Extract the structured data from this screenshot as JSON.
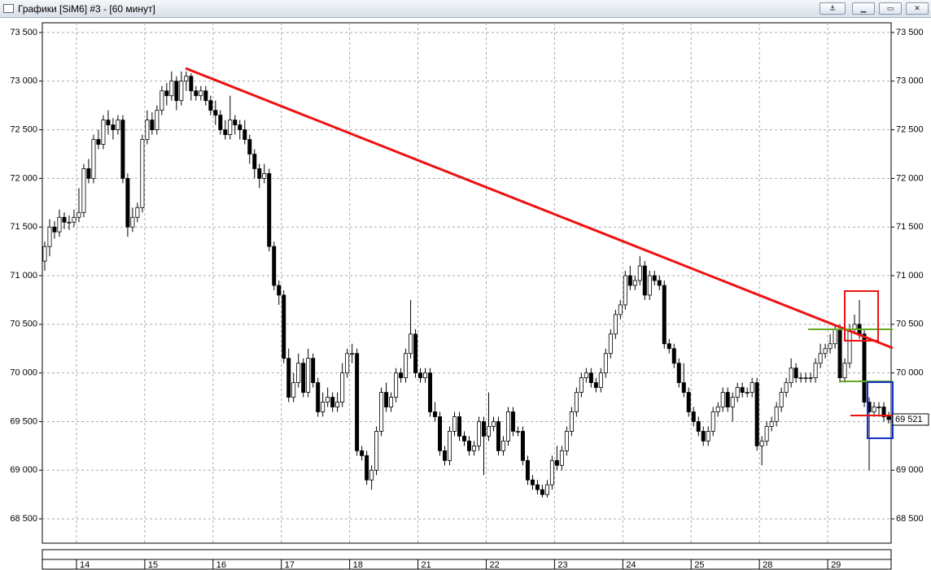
{
  "window_title": "Графики [SiM6] #3 - [60 минут]",
  "chart_data": {
    "type": "candlestick",
    "categories": [
      null,
      null,
      null,
      null,
      null,
      null,
      null,
      "14",
      null,
      null,
      null,
      null,
      null,
      null,
      null,
      null,
      null,
      null,
      null,
      null,
      null,
      "15",
      null,
      null,
      null,
      null,
      null,
      null,
      null,
      null,
      null,
      null,
      null,
      null,
      null,
      "16",
      null,
      null,
      null,
      null,
      null,
      null,
      null,
      null,
      null,
      null,
      null,
      null,
      null,
      "17",
      null,
      null,
      null,
      null,
      null,
      null,
      null,
      null,
      null,
      null,
      null,
      null,
      null,
      "18",
      null,
      null,
      null,
      null,
      null,
      null,
      null,
      null,
      null,
      null,
      null,
      null,
      null,
      "21",
      null,
      null,
      null,
      null,
      null,
      null,
      null,
      null,
      null,
      null,
      null,
      null,
      null,
      "22",
      null,
      null,
      null,
      null,
      null,
      null,
      null,
      null,
      null,
      null,
      null,
      null,
      null,
      "23",
      null,
      null,
      null,
      null,
      null,
      null,
      null,
      null,
      null,
      null,
      null,
      null,
      null,
      "24",
      null,
      null,
      null,
      null,
      null,
      null,
      null,
      null,
      null,
      null,
      null,
      null,
      null,
      "25",
      null,
      null,
      null,
      null,
      null,
      null,
      null,
      null,
      null,
      null,
      null,
      null,
      null,
      "28",
      null,
      null,
      null,
      null,
      null,
      null,
      null,
      null,
      null,
      null,
      null,
      null,
      null,
      "29",
      null,
      null,
      null,
      null,
      null,
      null,
      null,
      null,
      null,
      null,
      null,
      null
    ],
    "ohlc": [
      [
        71150,
        71350,
        71050,
        71300
      ],
      [
        71300,
        71580,
        71200,
        71500
      ],
      [
        71500,
        71560,
        71380,
        71450
      ],
      [
        71450,
        71680,
        71400,
        71600
      ],
      [
        71600,
        71650,
        71480,
        71550
      ],
      [
        71550,
        71620,
        71470,
        71550
      ],
      [
        71550,
        71680,
        71500,
        71600
      ],
      [
        71600,
        71900,
        71550,
        71650
      ],
      [
        71650,
        72150,
        71600,
        72100
      ],
      [
        72100,
        72200,
        71950,
        72000
      ],
      [
        72000,
        72450,
        71950,
        72400
      ],
      [
        72400,
        72500,
        72300,
        72350
      ],
      [
        72350,
        72650,
        72300,
        72600
      ],
      [
        72600,
        72700,
        72450,
        72550
      ],
      [
        72550,
        72620,
        72400,
        72500
      ],
      [
        72500,
        72650,
        72450,
        72600
      ],
      [
        72600,
        72650,
        71950,
        72000
      ],
      [
        72000,
        72050,
        71400,
        71500
      ],
      [
        71500,
        71700,
        71450,
        71600
      ],
      [
        71600,
        71750,
        71550,
        71700
      ],
      [
        71700,
        72450,
        71650,
        72400
      ],
      [
        72400,
        72700,
        72350,
        72600
      ],
      [
        72600,
        72680,
        72450,
        72500
      ],
      [
        72500,
        72750,
        72450,
        72700
      ],
      [
        72700,
        72950,
        72650,
        72900
      ],
      [
        72900,
        72980,
        72750,
        72850
      ],
      [
        72850,
        73100,
        72800,
        73000
      ],
      [
        73000,
        73050,
        72700,
        72800
      ],
      [
        72800,
        73100,
        72750,
        73000
      ],
      [
        73000,
        73100,
        72900,
        73050
      ],
      [
        73050,
        73080,
        72800,
        72900
      ],
      [
        72900,
        72950,
        72800,
        72850
      ],
      [
        72850,
        72950,
        72800,
        72900
      ],
      [
        72900,
        72950,
        72750,
        72800
      ],
      [
        72800,
        72850,
        72650,
        72700
      ],
      [
        72700,
        72800,
        72550,
        72650
      ],
      [
        72650,
        72700,
        72450,
        72500
      ],
      [
        72500,
        72600,
        72400,
        72450
      ],
      [
        72450,
        72850,
        72400,
        72600
      ],
      [
        72600,
        72650,
        72450,
        72550
      ],
      [
        72550,
        72600,
        72400,
        72500
      ],
      [
        72500,
        72600,
        72350,
        72400
      ],
      [
        72400,
        72450,
        72150,
        72250
      ],
      [
        72250,
        72300,
        72000,
        72100
      ],
      [
        72100,
        72150,
        71900,
        72000
      ],
      [
        72000,
        72150,
        71950,
        72050
      ],
      [
        72050,
        72100,
        71250,
        71300
      ],
      [
        71300,
        71350,
        70850,
        70900
      ],
      [
        70900,
        70950,
        70700,
        70800
      ],
      [
        70800,
        70850,
        70100,
        70150
      ],
      [
        70150,
        70250,
        69700,
        69750
      ],
      [
        69750,
        70000,
        69700,
        69900
      ],
      [
        69900,
        70200,
        69850,
        70100
      ],
      [
        70100,
        70150,
        69750,
        69800
      ],
      [
        69800,
        70250,
        69750,
        70150
      ],
      [
        70150,
        70200,
        69850,
        69900
      ],
      [
        69900,
        69950,
        69550,
        69600
      ],
      [
        69600,
        69800,
        69550,
        69700
      ],
      [
        69700,
        69850,
        69650,
        69750
      ],
      [
        69750,
        69800,
        69600,
        69650
      ],
      [
        69650,
        69800,
        69600,
        69700
      ],
      [
        69700,
        70100,
        69650,
        70000
      ],
      [
        70000,
        70250,
        69950,
        70200
      ],
      [
        70200,
        70300,
        70100,
        70200
      ],
      [
        70200,
        70250,
        69150,
        69200
      ],
      [
        69200,
        69250,
        69100,
        69150
      ],
      [
        69150,
        69200,
        68850,
        68900
      ],
      [
        68900,
        69050,
        68800,
        69000
      ],
      [
        69000,
        69450,
        68950,
        69400
      ],
      [
        69400,
        69850,
        69350,
        69800
      ],
      [
        69800,
        69900,
        69600,
        69650
      ],
      [
        69650,
        69800,
        69600,
        69750
      ],
      [
        69750,
        70050,
        69700,
        70000
      ],
      [
        70000,
        70050,
        69900,
        69950
      ],
      [
        69950,
        70250,
        69900,
        70200
      ],
      [
        70200,
        70750,
        70150,
        70400
      ],
      [
        70400,
        70450,
        69950,
        70000
      ],
      [
        70000,
        70050,
        69900,
        69950
      ],
      [
        69950,
        70050,
        69900,
        70000
      ],
      [
        70000,
        70050,
        69550,
        69600
      ],
      [
        69600,
        69700,
        69500,
        69550
      ],
      [
        69550,
        69600,
        69150,
        69200
      ],
      [
        69200,
        69250,
        69050,
        69100
      ],
      [
        69100,
        69450,
        69050,
        69400
      ],
      [
        69400,
        69600,
        69350,
        69550
      ],
      [
        69550,
        69600,
        69300,
        69350
      ],
      [
        69350,
        69400,
        69250,
        69300
      ],
      [
        69300,
        69350,
        69150,
        69200
      ],
      [
        69200,
        69300,
        69150,
        69250
      ],
      [
        69250,
        69550,
        69200,
        69500
      ],
      [
        69500,
        69550,
        68950,
        69350
      ],
      [
        69350,
        69800,
        69300,
        69450
      ],
      [
        69450,
        69550,
        69400,
        69500
      ],
      [
        69500,
        69550,
        69150,
        69200
      ],
      [
        69200,
        69350,
        69150,
        69300
      ],
      [
        69300,
        69650,
        69250,
        69600
      ],
      [
        69600,
        69650,
        69350,
        69400
      ],
      [
        69400,
        69450,
        69350,
        69400
      ],
      [
        69400,
        69450,
        69050,
        69100
      ],
      [
        69100,
        69150,
        68850,
        68900
      ],
      [
        68900,
        68950,
        68800,
        68850
      ],
      [
        68850,
        68900,
        68750,
        68800
      ],
      [
        68800,
        68850,
        68720,
        68750
      ],
      [
        68750,
        68900,
        68720,
        68850
      ],
      [
        68850,
        69150,
        68800,
        69100
      ],
      [
        69100,
        69250,
        69000,
        69050
      ],
      [
        69050,
        69250,
        69000,
        69200
      ],
      [
        69200,
        69450,
        69150,
        69400
      ],
      [
        69400,
        69650,
        69350,
        69600
      ],
      [
        69600,
        69850,
        69550,
        69800
      ],
      [
        69800,
        70000,
        69750,
        69950
      ],
      [
        69950,
        70050,
        69900,
        70000
      ],
      [
        70000,
        70050,
        69850,
        69900
      ],
      [
        69900,
        69950,
        69800,
        69850
      ],
      [
        69850,
        70050,
        69800,
        70000
      ],
      [
        70000,
        70250,
        69950,
        70200
      ],
      [
        70200,
        70450,
        70150,
        70400
      ],
      [
        70400,
        70650,
        70350,
        70600
      ],
      [
        70600,
        70750,
        70550,
        70700
      ],
      [
        70700,
        71050,
        70650,
        71000
      ],
      [
        71000,
        71100,
        70850,
        70900
      ],
      [
        70900,
        71000,
        70850,
        70950
      ],
      [
        70950,
        71200,
        70900,
        71100
      ],
      [
        71100,
        71150,
        70750,
        70800
      ],
      [
        70800,
        71050,
        70750,
        71000
      ],
      [
        71000,
        71050,
        70900,
        70950
      ],
      [
        70950,
        71000,
        70850,
        70900
      ],
      [
        70900,
        70950,
        70250,
        70300
      ],
      [
        70300,
        70350,
        70200,
        70250
      ],
      [
        70250,
        70300,
        70050,
        70100
      ],
      [
        70100,
        70150,
        69850,
        69900
      ],
      [
        69900,
        70100,
        69750,
        69800
      ],
      [
        69800,
        69850,
        69550,
        69600
      ],
      [
        69600,
        69650,
        69450,
        69500
      ],
      [
        69500,
        69550,
        69350,
        69400
      ],
      [
        69400,
        69450,
        69250,
        69300
      ],
      [
        69300,
        69450,
        69250,
        69400
      ],
      [
        69400,
        69650,
        69350,
        69600
      ],
      [
        69600,
        69700,
        69550,
        69650
      ],
      [
        69650,
        69850,
        69600,
        69800
      ],
      [
        69800,
        69850,
        69600,
        69650
      ],
      [
        69650,
        69800,
        69500,
        69750
      ],
      [
        69750,
        69900,
        69700,
        69850
      ],
      [
        69850,
        69900,
        69750,
        69800
      ],
      [
        69800,
        69850,
        69750,
        69800
      ],
      [
        69800,
        69950,
        69750,
        69900
      ],
      [
        69900,
        69950,
        69200,
        69250
      ],
      [
        69250,
        69350,
        69050,
        69300
      ],
      [
        69300,
        69500,
        69250,
        69450
      ],
      [
        69450,
        69550,
        69400,
        69500
      ],
      [
        69500,
        69700,
        69450,
        69650
      ],
      [
        69650,
        69850,
        69600,
        69800
      ],
      [
        69800,
        69950,
        69750,
        69900
      ],
      [
        69900,
        70150,
        69850,
        70050
      ],
      [
        70050,
        70100,
        69900,
        69950
      ],
      [
        69950,
        70000,
        69900,
        69950
      ],
      [
        69950,
        70000,
        69900,
        69950
      ],
      [
        69950,
        70000,
        69900,
        69950
      ],
      [
        69950,
        70150,
        69900,
        70100
      ],
      [
        70100,
        70300,
        70050,
        70200
      ],
      [
        70200,
        70300,
        70150,
        70250
      ],
      [
        70250,
        70400,
        70200,
        70300
      ],
      [
        70300,
        70500,
        70250,
        70450
      ],
      [
        70450,
        70500,
        69900,
        69950
      ],
      [
        69950,
        70150,
        69900,
        70100
      ],
      [
        70100,
        70500,
        70050,
        70450
      ],
      [
        70450,
        70600,
        70400,
        70500
      ],
      [
        70500,
        70750,
        70350,
        70400
      ],
      [
        70400,
        70450,
        69650,
        69700
      ],
      [
        69700,
        69750,
        69000,
        69600
      ],
      [
        69600,
        69700,
        69550,
        69650
      ],
      [
        69650,
        69700,
        69550,
        69650
      ],
      [
        69650,
        69700,
        69500,
        69550
      ],
      [
        69550,
        69600,
        69480,
        69521
      ]
    ],
    "up_color": "#ffffff",
    "down_color": "#000000",
    "ylim": [
      68250,
      73600
    ],
    "yticks": [
      {
        "value": 68500,
        "label": "68 500"
      },
      {
        "value": 69000,
        "label": "69 000"
      },
      {
        "value": 69500,
        "label": "69 500"
      },
      {
        "value": 70000,
        "label": "70 000"
      },
      {
        "value": 70500,
        "label": "70 500"
      },
      {
        "value": 71000,
        "label": "71 000"
      },
      {
        "value": 71500,
        "label": "71 500"
      },
      {
        "value": 72000,
        "label": "72 000"
      },
      {
        "value": 72500,
        "label": "72 500"
      },
      {
        "value": 73000,
        "label": "73 000"
      },
      {
        "value": 73500,
        "label": "73 500"
      }
    ],
    "last_price": {
      "value": 69521,
      "label": "69 521"
    },
    "grid": true
  }
}
